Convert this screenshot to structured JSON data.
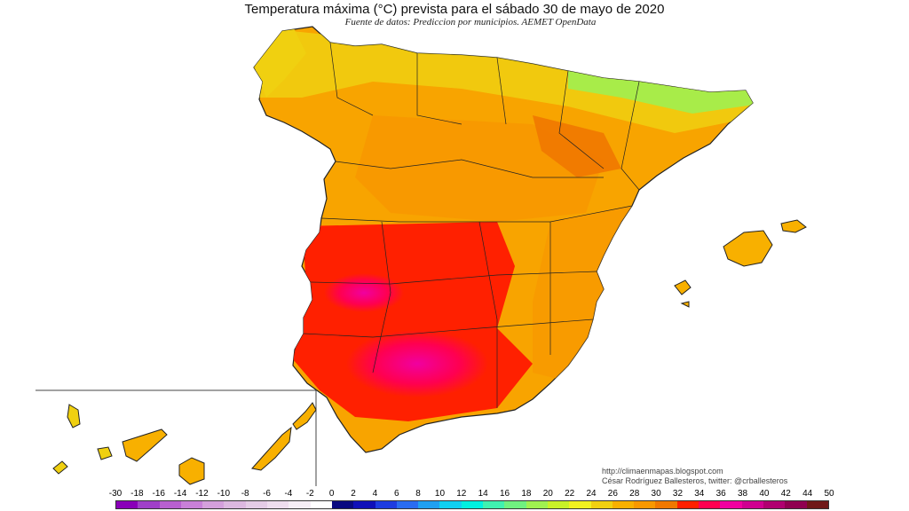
{
  "title": "Temperatura máxima (°C) prevista para el sábado 30 de mayo de 2020",
  "subtitle": "Fuente de datos: Prediccion por municipios. AEMET OpenData",
  "credits": {
    "url": "http://climaenmapas.blogspot.com",
    "author": "César Rodríguez Ballesteros, twitter: @crballesteros"
  },
  "legend": {
    "unit": "°C",
    "tick_labels": [
      "-30",
      "-18",
      "-16",
      "-14",
      "-12",
      "-10",
      "-8",
      "-6",
      "-4",
      "-2",
      "0",
      "2",
      "4",
      "6",
      "8",
      "10",
      "12",
      "14",
      "16",
      "18",
      "20",
      "22",
      "24",
      "26",
      "28",
      "30",
      "32",
      "34",
      "36",
      "38",
      "40",
      "42",
      "44",
      "50"
    ],
    "colors": [
      "#8a00b8",
      "#a040c8",
      "#b860d0",
      "#c880d8",
      "#d4a0dc",
      "#dcb8e0",
      "#e4cce6",
      "#eeddee",
      "#f6eef6",
      "#ffffff",
      "#0a0a80",
      "#1010b8",
      "#1e3ce0",
      "#2a6cf0",
      "#20a0f0",
      "#10d0f0",
      "#00f0e0",
      "#40f0b0",
      "#70f080",
      "#a0f050",
      "#c8f028",
      "#f0f020",
      "#f0d010",
      "#f8b000",
      "#f89800",
      "#f07800",
      "#ff2000",
      "#ff0050",
      "#f000a0",
      "#d00090",
      "#b00070",
      "#900050",
      "#701818"
    ]
  },
  "map": {
    "regions_shown": [
      "Península Ibérica (España)",
      "Islas Baleares",
      "Islas Canarias"
    ],
    "temperature_zones": [
      {
        "zone": "Cantábrico / norte",
        "range": "18–24"
      },
      {
        "zone": "Meseta norte",
        "range": "26–30"
      },
      {
        "zone": "Valle del Ebro",
        "range": "30–32"
      },
      {
        "zone": "Extremadura / Castilla-La Mancha sur",
        "range": "32–34"
      },
      {
        "zone": "Valle del Guadalquivir",
        "range": "34–38"
      },
      {
        "zone": "Mediterráneo / Baleares",
        "range": "26–30"
      },
      {
        "zone": "Canarias",
        "range": "24–28"
      }
    ]
  }
}
